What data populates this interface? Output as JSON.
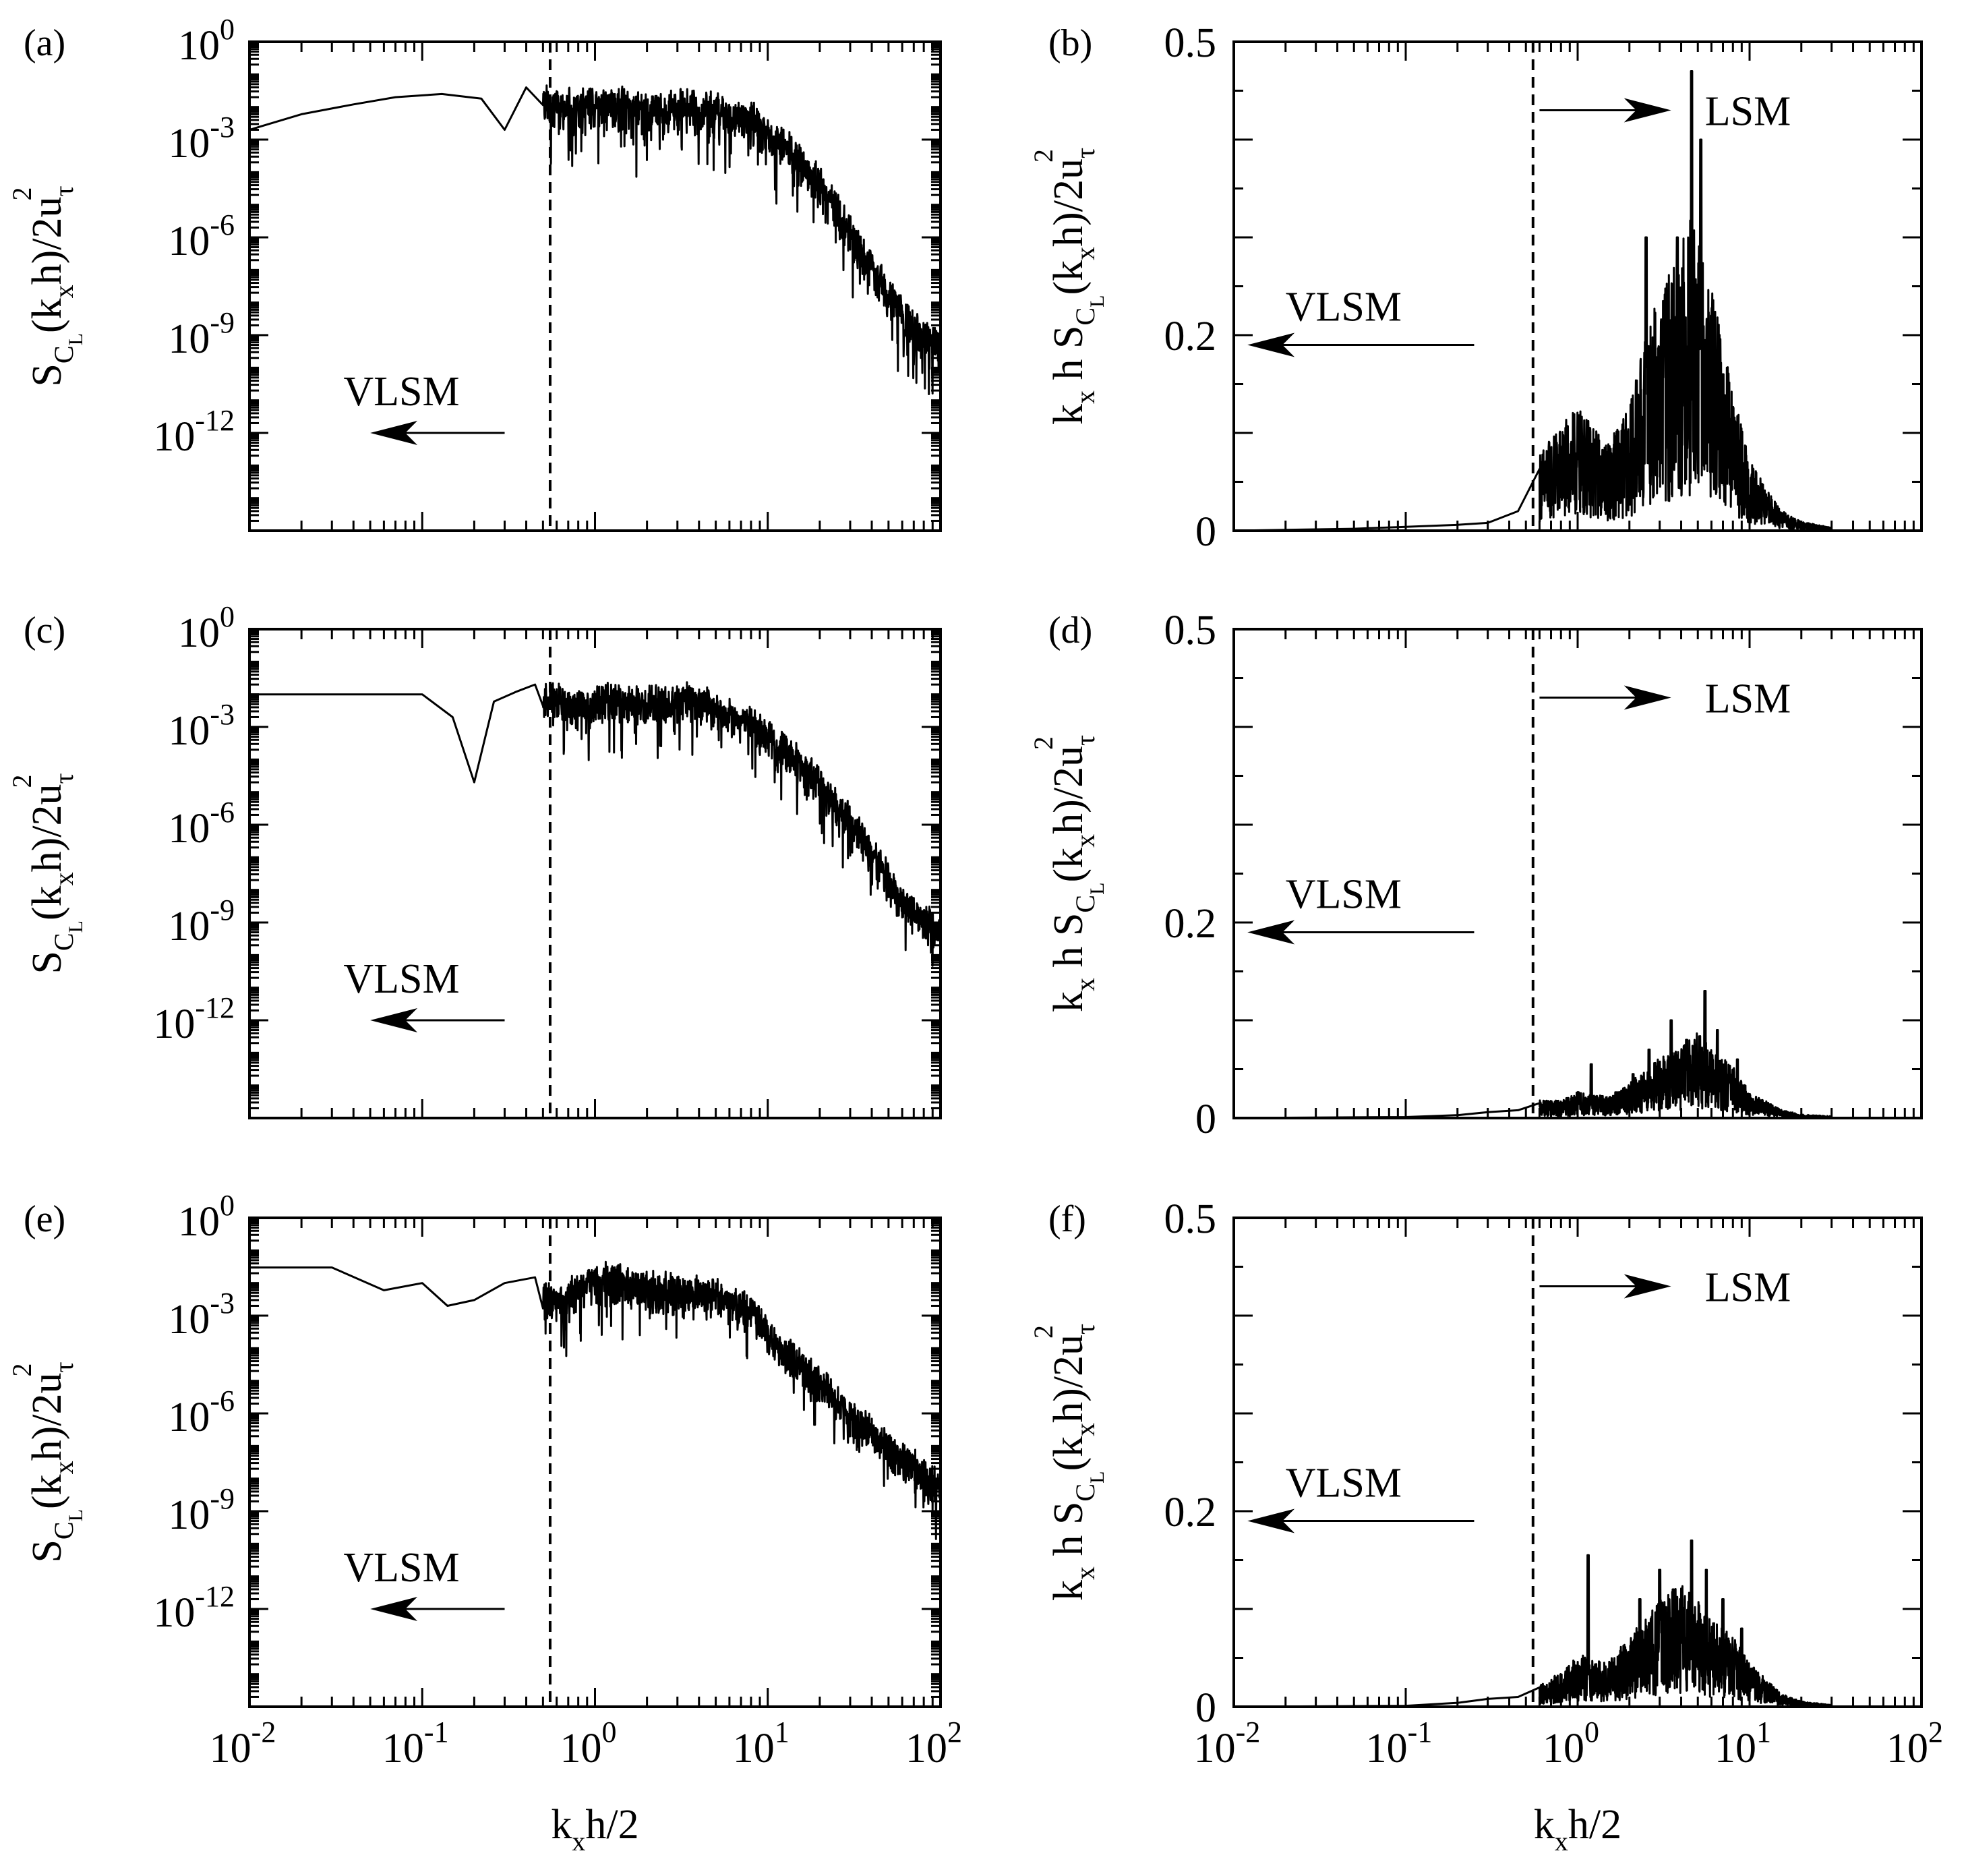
{
  "chart_data": [
    {
      "id": "a",
      "panel_label": "(a)",
      "type": "line",
      "yscale": "log",
      "xlim": [
        0.01,
        100
      ],
      "ylim": [
        1e-15,
        1
      ],
      "y_ticks": [
        {
          "base": "10",
          "exp": "0"
        },
        {
          "base": "10",
          "exp": "-3"
        },
        {
          "base": "10",
          "exp": "-6"
        },
        {
          "base": "10",
          "exp": "-9"
        },
        {
          "base": "10",
          "exp": "-12"
        }
      ],
      "x_ticks": [],
      "ylabel": {
        "s": "S",
        "c": "C",
        "l": "L",
        "rest1": "(k",
        "x": "x",
        "rest2": "h)/2u",
        "tau": "τ",
        "exp": "2"
      },
      "xlabel": null,
      "cutoff_x": 0.55,
      "annotations": [
        {
          "text": "VLSM",
          "direction": "left",
          "x_from": 0.3,
          "x_to": 0.05,
          "y": 1e-12,
          "text_x": 0.035,
          "text_y": 2e-11
        }
      ],
      "series": [
        {
          "name": "S_CL",
          "envelope_x": [
            0.01,
            0.02,
            0.04,
            0.07,
            0.13,
            0.22,
            0.3,
            0.4,
            0.55,
            0.8,
            1.2,
            2,
            3,
            5,
            8,
            12,
            20,
            35,
            60,
            100
          ],
          "envelope_y": [
            0.002,
            0.006,
            0.012,
            0.02,
            0.025,
            0.018,
            0.002,
            0.04,
            0.03,
            0.025,
            0.03,
            0.02,
            0.025,
            0.018,
            0.01,
            0.002,
            0.0001,
            1e-06,
            1e-08,
            1e-09
          ],
          "roughness": 0.5,
          "noise_start": 0.5
        }
      ]
    },
    {
      "id": "b",
      "panel_label": "(b)",
      "type": "line",
      "yscale": "linear",
      "xlim": [
        0.01,
        100
      ],
      "ylim": [
        0,
        0.5
      ],
      "y_ticks": [
        {
          "label": "0.5",
          "v": 0.5
        },
        {
          "label": "0.2",
          "v": 0.2
        },
        {
          "label": "0",
          "v": 0
        }
      ],
      "x_ticks": [],
      "ylabel": {
        "kh": "k",
        "x": "x",
        "h": " h S",
        "c": "C",
        "l": "L",
        "rest1": "(k",
        "rest2": "h)/2u",
        "tau": "τ",
        "exp": "2"
      },
      "xlabel": null,
      "cutoff_x": 0.55,
      "annotations": [
        {
          "text": "LSM",
          "direction": "right",
          "x_from": 0.6,
          "x_to": 3.5,
          "y": 0.43,
          "text_x": 5.5,
          "text_y": 0.43
        },
        {
          "text": "VLSM",
          "direction": "left",
          "x_from": 0.25,
          "x_to": 0.012,
          "y": 0.19,
          "text_x": 0.02,
          "text_y": 0.23
        }
      ],
      "series": [
        {
          "name": "kS_CL",
          "envelope_x": [
            0.01,
            0.05,
            0.1,
            0.2,
            0.3,
            0.45,
            0.6,
            0.8,
            1.0,
            1.5,
            2,
            2.6,
            3.2,
            4.5,
            6,
            8,
            10,
            15,
            20,
            30
          ],
          "envelope_y": [
            0,
            0.002,
            0.004,
            0.006,
            0.008,
            0.02,
            0.045,
            0.06,
            0.07,
            0.05,
            0.07,
            0.12,
            0.14,
            0.18,
            0.14,
            0.08,
            0.04,
            0.012,
            0.005,
            0.002
          ],
          "peaks": [
            [
              0.75,
              0.09
            ],
            [
              1.3,
              0.065
            ],
            [
              2.5,
              0.3
            ],
            [
              3.2,
              0.22
            ],
            [
              3.8,
              0.3
            ],
            [
              4.6,
              0.47
            ],
            [
              5.2,
              0.4
            ],
            [
              6.0,
              0.22
            ],
            [
              7.0,
              0.16
            ]
          ],
          "roughness": 0.8,
          "noise_start": 0.6
        }
      ]
    },
    {
      "id": "c",
      "panel_label": "(c)",
      "type": "line",
      "yscale": "log",
      "xlim": [
        0.01,
        100
      ],
      "ylim": [
        1e-15,
        1
      ],
      "y_ticks": [
        {
          "base": "10",
          "exp": "0"
        },
        {
          "base": "10",
          "exp": "-3"
        },
        {
          "base": "10",
          "exp": "-6"
        },
        {
          "base": "10",
          "exp": "-9"
        },
        {
          "base": "10",
          "exp": "-12"
        }
      ],
      "x_ticks": [],
      "ylabel": {
        "s": "S",
        "c": "C",
        "l": "L",
        "rest1": "(k",
        "x": "x",
        "rest2": "h)/2u",
        "tau": "τ",
        "exp": "2"
      },
      "xlabel": null,
      "cutoff_x": 0.55,
      "annotations": [
        {
          "text": "VLSM",
          "direction": "left",
          "x_from": 0.3,
          "x_to": 0.05,
          "y": 1e-12,
          "text_x": 0.035,
          "text_y": 2e-11
        }
      ],
      "series": [
        {
          "name": "S_CL",
          "envelope_x": [
            0.01,
            0.02,
            0.05,
            0.1,
            0.15,
            0.2,
            0.26,
            0.35,
            0.45,
            0.55,
            0.8,
            1.2,
            2,
            3,
            5,
            8,
            12,
            20,
            35,
            60,
            100
          ],
          "envelope_y": [
            0.01,
            0.01,
            0.01,
            0.01,
            0.002,
            2e-05,
            0.006,
            0.012,
            0.02,
            0.015,
            0.01,
            0.015,
            0.012,
            0.015,
            0.01,
            0.003,
            0.0005,
            5e-05,
            1e-06,
            1e-08,
            1e-09
          ],
          "roughness": 0.45,
          "noise_start": 0.5
        }
      ]
    },
    {
      "id": "d",
      "panel_label": "(d)",
      "type": "line",
      "yscale": "linear",
      "xlim": [
        0.01,
        100
      ],
      "ylim": [
        0,
        0.5
      ],
      "y_ticks": [
        {
          "label": "0.5",
          "v": 0.5
        },
        {
          "label": "0.2",
          "v": 0.2
        },
        {
          "label": "0",
          "v": 0
        }
      ],
      "x_ticks": [],
      "ylabel": {
        "kh": "k",
        "x": "x",
        "h": " h S",
        "c": "C",
        "l": "L",
        "rest1": "(k",
        "rest2": "h)/2u",
        "tau": "τ",
        "exp": "2"
      },
      "xlabel": null,
      "cutoff_x": 0.55,
      "annotations": [
        {
          "text": "LSM",
          "direction": "right",
          "x_from": 0.6,
          "x_to": 3.5,
          "y": 0.43,
          "text_x": 5.5,
          "text_y": 0.43
        },
        {
          "text": "VLSM",
          "direction": "left",
          "x_from": 0.25,
          "x_to": 0.012,
          "y": 0.19,
          "text_x": 0.02,
          "text_y": 0.23
        }
      ],
      "series": [
        {
          "name": "kS_CL",
          "envelope_x": [
            0.01,
            0.1,
            0.2,
            0.3,
            0.45,
            0.6,
            0.8,
            1.0,
            1.5,
            2,
            3,
            4,
            5,
            6,
            8,
            10,
            15,
            20,
            30
          ],
          "envelope_y": [
            0,
            0.001,
            0.003,
            0.006,
            0.008,
            0.01,
            0.01,
            0.015,
            0.012,
            0.02,
            0.035,
            0.04,
            0.05,
            0.04,
            0.03,
            0.015,
            0.005,
            0.002,
            0.001
          ],
          "peaks": [
            [
              1.2,
              0.055
            ],
            [
              2.1,
              0.045
            ],
            [
              2.6,
              0.07
            ],
            [
              3.5,
              0.1
            ],
            [
              4.3,
              0.08
            ],
            [
              5.5,
              0.13
            ],
            [
              6.5,
              0.09
            ],
            [
              8.5,
              0.06
            ]
          ],
          "roughness": 0.7,
          "noise_start": 0.6
        }
      ]
    },
    {
      "id": "e",
      "panel_label": "(e)",
      "type": "line",
      "yscale": "log",
      "xlim": [
        0.01,
        100
      ],
      "ylim": [
        1e-15,
        1
      ],
      "y_ticks": [
        {
          "base": "10",
          "exp": "0"
        },
        {
          "base": "10",
          "exp": "-3"
        },
        {
          "base": "10",
          "exp": "-6"
        },
        {
          "base": "10",
          "exp": "-9"
        },
        {
          "base": "10",
          "exp": "-12"
        }
      ],
      "x_ticks": [
        {
          "base": "10",
          "exp": "-2",
          "v": 0.01
        },
        {
          "base": "10",
          "exp": "-1",
          "v": 0.1
        },
        {
          "base": "10",
          "exp": "0",
          "v": 1
        },
        {
          "base": "10",
          "exp": "1",
          "v": 10
        },
        {
          "base": "10",
          "exp": "2",
          "v": 100
        }
      ],
      "ylabel": {
        "s": "S",
        "c": "C",
        "l": "L",
        "rest1": "(k",
        "x": "x",
        "rest2": "h)/2u",
        "tau": "τ",
        "exp": "2"
      },
      "xlabel": {
        "k": "k",
        "x": "x",
        "rest": "h/2"
      },
      "cutoff_x": 0.55,
      "annotations": [
        {
          "text": "VLSM",
          "direction": "left",
          "x_from": 0.3,
          "x_to": 0.05,
          "y": 1e-12,
          "text_x": 0.035,
          "text_y": 2e-11
        }
      ],
      "series": [
        {
          "name": "S_CL",
          "envelope_x": [
            0.01,
            0.03,
            0.06,
            0.1,
            0.14,
            0.2,
            0.3,
            0.45,
            0.6,
            0.9,
            1.3,
            2,
            3,
            5,
            8,
            12,
            20,
            35,
            60,
            100
          ],
          "envelope_y": [
            0.03,
            0.03,
            0.006,
            0.01,
            0.002,
            0.003,
            0.01,
            0.015,
            0.005,
            0.02,
            0.03,
            0.015,
            0.012,
            0.01,
            0.003,
            0.0002,
            2e-05,
            1e-06,
            1e-07,
            1e-08
          ],
          "roughness": 0.45,
          "noise_start": 0.5
        }
      ]
    },
    {
      "id": "f",
      "panel_label": "(f)",
      "type": "line",
      "yscale": "linear",
      "xlim": [
        0.01,
        100
      ],
      "ylim": [
        0,
        0.5
      ],
      "y_ticks": [
        {
          "label": "0.5",
          "v": 0.5
        },
        {
          "label": "0.2",
          "v": 0.2
        },
        {
          "label": "0",
          "v": 0
        }
      ],
      "x_ticks": [
        {
          "base": "10",
          "exp": "-2",
          "v": 0.01
        },
        {
          "base": "10",
          "exp": "-1",
          "v": 0.1
        },
        {
          "base": "10",
          "exp": "0",
          "v": 1
        },
        {
          "base": "10",
          "exp": "1",
          "v": 10
        },
        {
          "base": "10",
          "exp": "2",
          "v": 100
        }
      ],
      "ylabel": {
        "kh": "k",
        "x": "x",
        "h": " h S",
        "c": "C",
        "l": "L",
        "rest1": "(k",
        "rest2": "h)/2u",
        "tau": "τ",
        "exp": "2"
      },
      "xlabel": {
        "k": "k",
        "x": "x",
        "rest": "h/2"
      },
      "cutoff_x": 0.55,
      "annotations": [
        {
          "text": "LSM",
          "direction": "right",
          "x_from": 0.6,
          "x_to": 3.5,
          "y": 0.43,
          "text_x": 5.5,
          "text_y": 0.43
        },
        {
          "text": "VLSM",
          "direction": "left",
          "x_from": 0.25,
          "x_to": 0.012,
          "y": 0.19,
          "text_x": 0.02,
          "text_y": 0.23
        }
      ],
      "series": [
        {
          "name": "kS_CL",
          "envelope_x": [
            0.01,
            0.1,
            0.2,
            0.3,
            0.45,
            0.6,
            0.8,
            1.0,
            1.5,
            2,
            3,
            4,
            5,
            6,
            8,
            10,
            15,
            20,
            30
          ],
          "envelope_y": [
            0,
            0.001,
            0.004,
            0.008,
            0.01,
            0.012,
            0.02,
            0.03,
            0.025,
            0.04,
            0.06,
            0.07,
            0.06,
            0.05,
            0.04,
            0.025,
            0.008,
            0.003,
            0.001
          ],
          "peaks": [
            [
              1.15,
              0.155
            ],
            [
              2.3,
              0.11
            ],
            [
              3.0,
              0.14
            ],
            [
              3.6,
              0.12
            ],
            [
              4.6,
              0.17
            ],
            [
              5.6,
              0.14
            ],
            [
              7.0,
              0.11
            ],
            [
              9.0,
              0.08
            ]
          ],
          "roughness": 0.7,
          "noise_start": 0.6
        }
      ]
    }
  ]
}
